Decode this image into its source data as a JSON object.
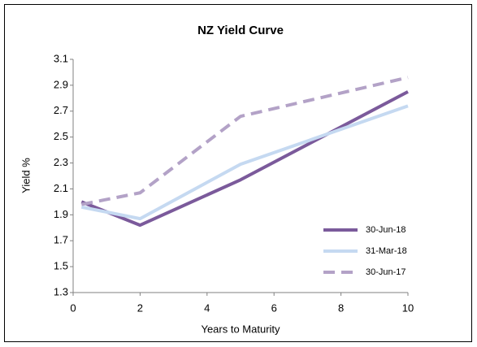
{
  "chart_data": {
    "type": "line",
    "title": "NZ Yield Curve",
    "x_label": "Years to Maturity",
    "y_label": "Yield %",
    "x": [
      0.25,
      2,
      5,
      10
    ],
    "series": [
      {
        "name": "30-Jun-18",
        "color": "#7b5a9b",
        "values": [
          2.0,
          1.82,
          2.17,
          2.85
        ]
      },
      {
        "name": "31-Mar-18",
        "color": "#c5d9f1",
        "values": [
          1.96,
          1.87,
          2.29,
          2.74
        ]
      },
      {
        "name": "30-Jun-17",
        "color": "#b3a2c7",
        "dash": true,
        "values": [
          1.98,
          2.07,
          2.66,
          2.96
        ]
      }
    ],
    "xlim": [
      0,
      10
    ],
    "xticks": [
      0,
      2,
      4,
      6,
      8,
      10
    ],
    "ylim": [
      1.3,
      3.1
    ],
    "yticks": [
      1.3,
      1.5,
      1.7,
      1.9,
      2.1,
      2.3,
      2.5,
      2.7,
      2.9,
      3.1
    ],
    "grid": false,
    "legend": "lower right"
  }
}
